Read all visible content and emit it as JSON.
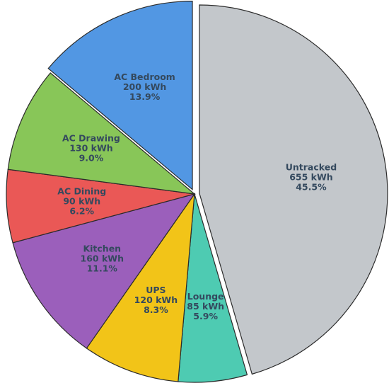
{
  "chart_data": {
    "type": "pie",
    "slices": [
      {
        "name": "Untracked",
        "kwh_label": "655 kWh",
        "pct_label": "45.5%",
        "value": 655,
        "color": "#c3c7cb",
        "explode": true
      },
      {
        "name": "Lounge",
        "kwh_label": "85 kWh",
        "pct_label": "5.9%",
        "value": 85,
        "color": "#4ecbb2",
        "explode": false
      },
      {
        "name": "UPS",
        "kwh_label": "120 kWh",
        "pct_label": "8.3%",
        "value": 120,
        "color": "#f2c418",
        "explode": false
      },
      {
        "name": "Kitchen",
        "kwh_label": "160 kWh",
        "pct_label": "11.1%",
        "value": 160,
        "color": "#9b5fbb",
        "explode": false
      },
      {
        "name": "AC Dining",
        "kwh_label": "90 kWh",
        "pct_label": "6.2%",
        "value": 90,
        "color": "#ea5856",
        "explode": false
      },
      {
        "name": "AC Drawing",
        "kwh_label": "130 kWh",
        "pct_label": "9.0%",
        "value": 130,
        "color": "#88c658",
        "explode": false
      },
      {
        "name": "AC Bedroom",
        "kwh_label": "200 kWh",
        "pct_label": "13.9%",
        "value": 200,
        "color": "#5297e3",
        "explode": true
      }
    ],
    "start_angle_deg": 90,
    "direction": "clockwise",
    "label_text_color": "#34495e",
    "edge_color": "#2b2b2b"
  }
}
